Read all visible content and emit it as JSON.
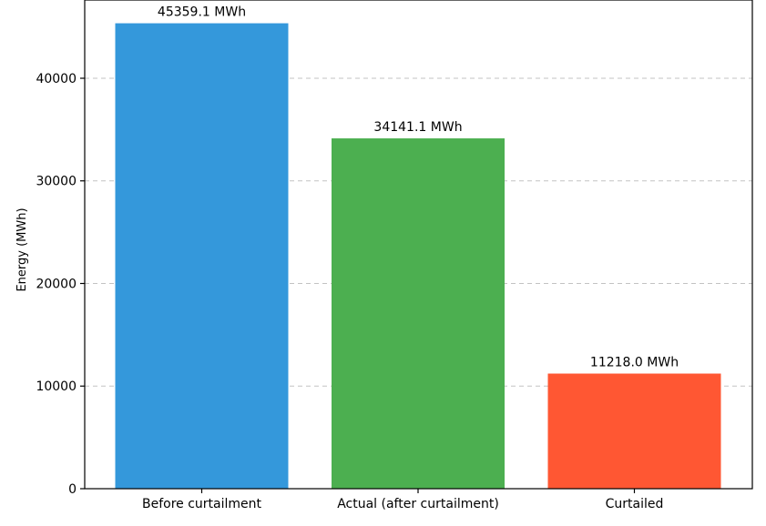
{
  "chart_data": {
    "type": "bar",
    "categories": [
      "Before curtailment",
      "Actual (after curtailment)",
      "Curtailed"
    ],
    "values": [
      45359.1,
      34141.1,
      11218.0
    ],
    "value_labels": [
      "45359.1 MWh",
      "34141.1 MWh",
      "11218.0 MWh"
    ],
    "colors": [
      "#3498db",
      "#4caf50",
      "#ff5733"
    ],
    "title": "",
    "xlabel": "",
    "ylabel": "Energy (MWh)",
    "ylim": [
      0,
      47627
    ],
    "yticks": [
      0,
      10000,
      20000,
      30000,
      40000
    ],
    "ytick_labels": [
      "0",
      "10000",
      "20000",
      "30000",
      "40000"
    ],
    "grid": "y-dashed"
  }
}
